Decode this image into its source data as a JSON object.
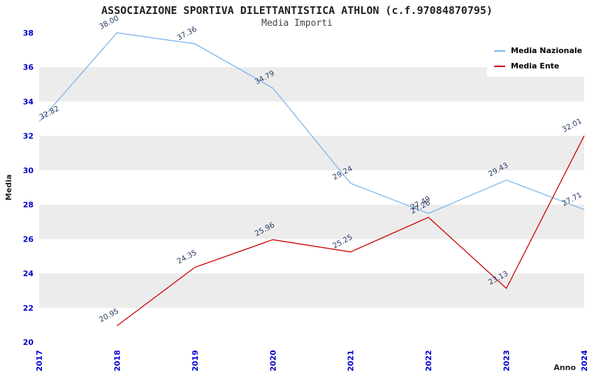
{
  "chart_data": {
    "type": "line",
    "title": "ASSOCIAZIONE SPORTIVA DILETTANTISTICA ATHLON (c.f.97084870795)",
    "subtitle": "Media Importi",
    "xlabel": "Anno",
    "ylabel": "Media",
    "categories": [
      "2017",
      "2018",
      "2019",
      "2020",
      "2021",
      "2022",
      "2023",
      "2024"
    ],
    "ylim": [
      20,
      38
    ],
    "ytick_step": 2,
    "grid": "alternating-bands",
    "legend_position": "top-right",
    "series": [
      {
        "name": "Media Nazionale",
        "color": "#7cb5ec",
        "values": [
          32.82,
          38.0,
          37.36,
          34.79,
          29.24,
          27.49,
          29.43,
          27.71
        ]
      },
      {
        "name": "Media Ente",
        "color": "#cc0000",
        "values": [
          null,
          20.95,
          24.35,
          25.96,
          25.25,
          27.26,
          23.13,
          32.01
        ]
      }
    ],
    "colors": {
      "band": "#ececec",
      "axis_text": "#0000cc",
      "value_label": "#2c3e66",
      "axis_title": "#222222"
    }
  }
}
